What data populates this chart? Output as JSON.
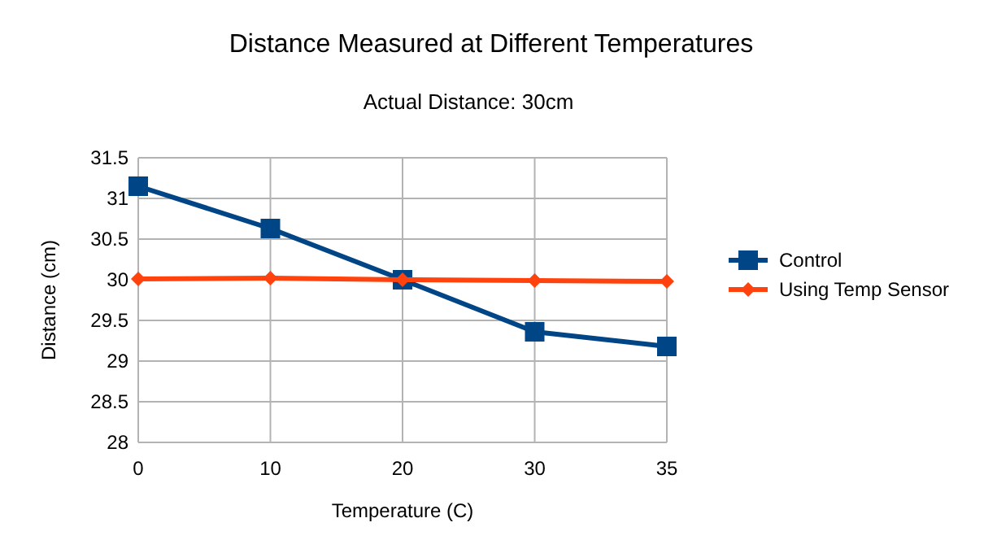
{
  "chart_data": {
    "type": "line",
    "title": "Distance Measured at Different Temperatures",
    "subtitle": "Actual Distance: 30cm",
    "xlabel": "Temperature (C)",
    "ylabel": "Distance (cm)",
    "categories": [
      "0",
      "10",
      "20",
      "30",
      "35"
    ],
    "series": [
      {
        "name": "Control",
        "color": "#004586",
        "marker": "square",
        "values": [
          31.15,
          30.63,
          30.0,
          29.36,
          29.18
        ]
      },
      {
        "name": "Using Temp Sensor",
        "color": "#ff420e",
        "marker": "diamond",
        "values": [
          30.01,
          30.02,
          30.0,
          29.99,
          29.98
        ]
      }
    ],
    "ylim": [
      28,
      31.5
    ],
    "yticks": [
      28,
      28.5,
      29,
      29.5,
      30,
      30.5,
      31,
      31.5
    ],
    "grid": true,
    "legend": "right"
  }
}
